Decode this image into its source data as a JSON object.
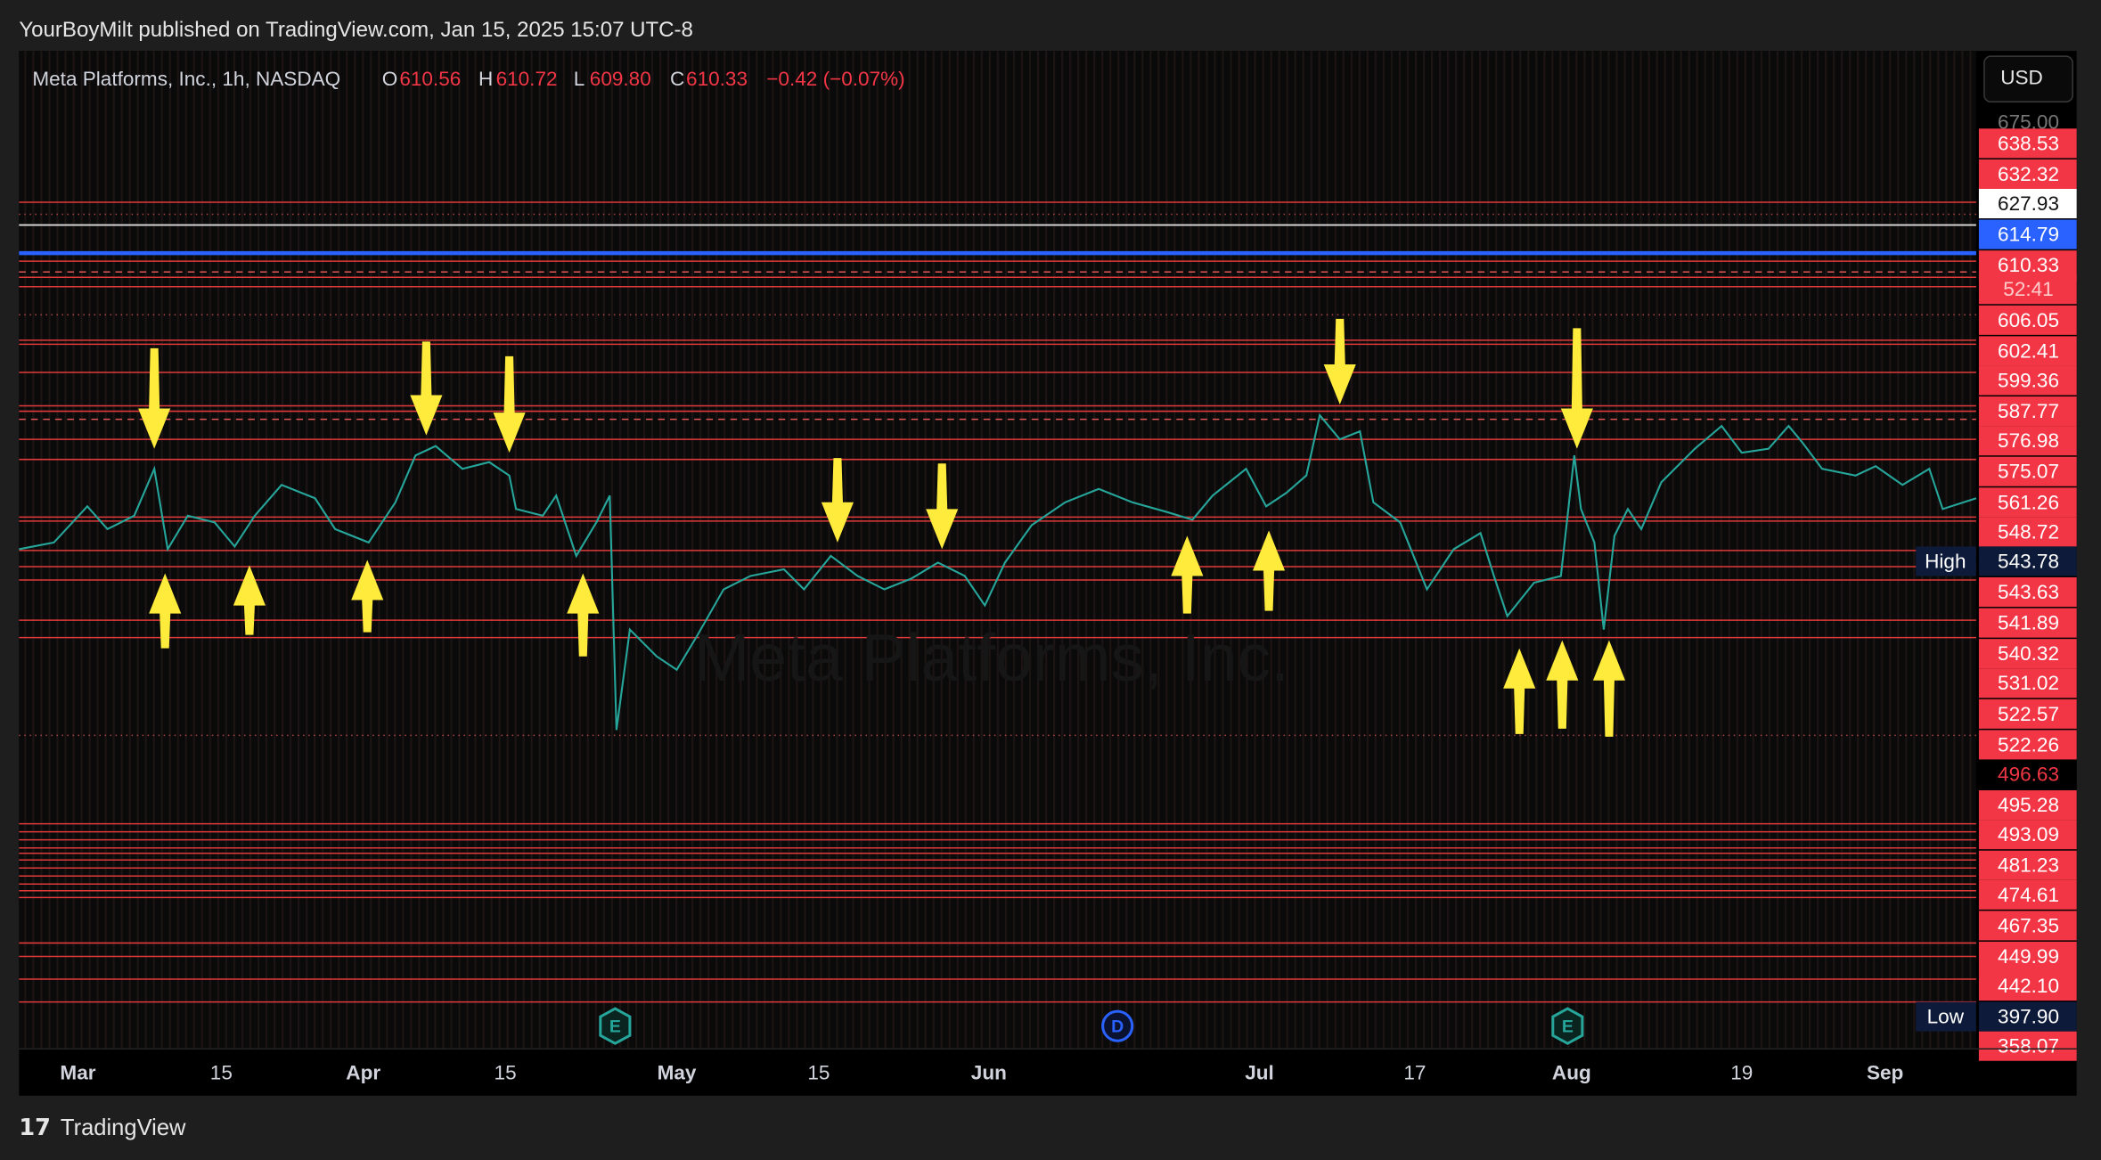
{
  "header": {
    "title": "YourBoyMilt published on TradingView.com, Jan 15, 2025 15:07 UTC-8"
  },
  "legend": {
    "symbol": "Meta Platforms, Inc., 1h, NASDAQ",
    "open_label": "O",
    "open": "610.56",
    "high_label": "H",
    "high": "610.72",
    "low_label": "L",
    "low": "609.80",
    "close_label": "C",
    "close": "610.33",
    "change": "−0.42 (−0.07%)"
  },
  "currency": "USD",
  "price_labels": [
    "675.00",
    "638.53",
    "632.32",
    "627.93",
    "614.79",
    "610.33",
    "52:41",
    "606.05",
    "602.41",
    "599.36",
    "587.77",
    "576.98",
    "575.07",
    "561.26",
    "548.72",
    "543.78",
    "543.63",
    "541.89",
    "540.32",
    "531.02",
    "522.57",
    "522.26",
    "496.63",
    "495.28",
    "493.09",
    "481.23",
    "474.61",
    "467.35",
    "449.99",
    "442.10",
    "397.90",
    "358.07"
  ],
  "range_labels": {
    "high": "High",
    "low": "Low"
  },
  "x_axis": [
    "Mar",
    "15",
    "Apr",
    "15",
    "May",
    "15",
    "Jun",
    "Jul",
    "17",
    "Aug",
    "19",
    "Sep"
  ],
  "events": [
    "E",
    "D",
    "E"
  ],
  "watermark": "Meta Platforms, Inc.",
  "footer": "TradingView"
}
